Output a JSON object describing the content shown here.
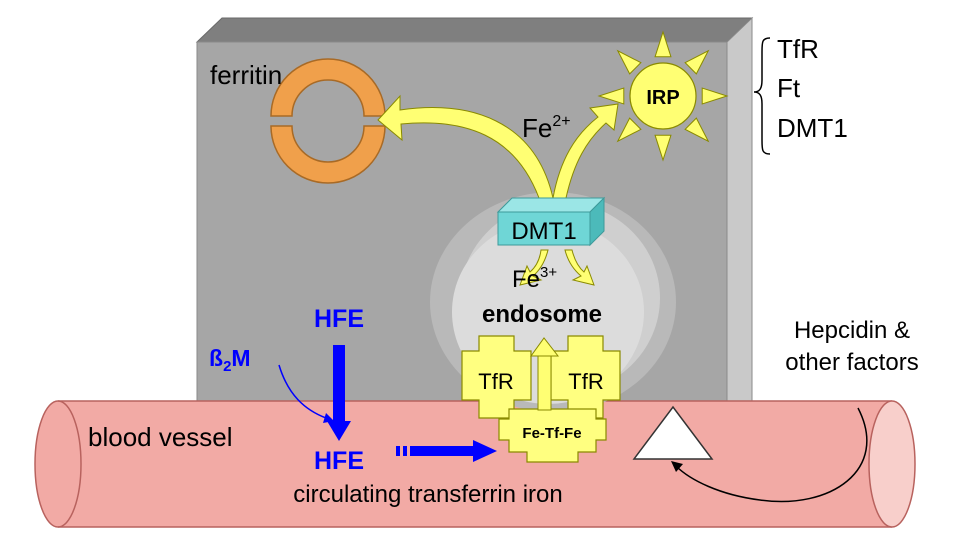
{
  "labels": {
    "ferritin": "ferritin",
    "fe2": "Fe",
    "fe2_charge": "2+",
    "irp": "IRP",
    "brace_items": [
      "TfR",
      "Ft",
      "DMT1"
    ],
    "dmt1": "DMT1",
    "fe3": "Fe",
    "fe3_charge": "3+",
    "endosome": "endosome",
    "hfe_top": "HFE",
    "b2m_main": "ß",
    "b2m_sub": "2",
    "b2m_tail": "M",
    "tfr_left": "TfR",
    "tfr_right": "TfR",
    "fe_tf_fe": "Fe-Tf-Fe",
    "blood_vessel": "blood vessel",
    "hfe_bottom": "HFE",
    "circulating": "circulating transferrin iron",
    "hepcidin_line1": "Hepcidin &",
    "hepcidin_line2": "other factors"
  },
  "colors": {
    "cell_front": "#a4a4a4",
    "cell_top": "#7f7f7f",
    "cell_side": "#c7c7c7",
    "vessel": "#f2aaa5",
    "vessel_stroke": "#b8625e",
    "ferritin": "#f0a04b",
    "arrow_yellow": "#ffff73",
    "irp_sun": "#ffff73",
    "dmt1_front": "#6fd6d6",
    "hfe_blue": "#0000ff",
    "tfr_yellow": "#ffff80"
  }
}
